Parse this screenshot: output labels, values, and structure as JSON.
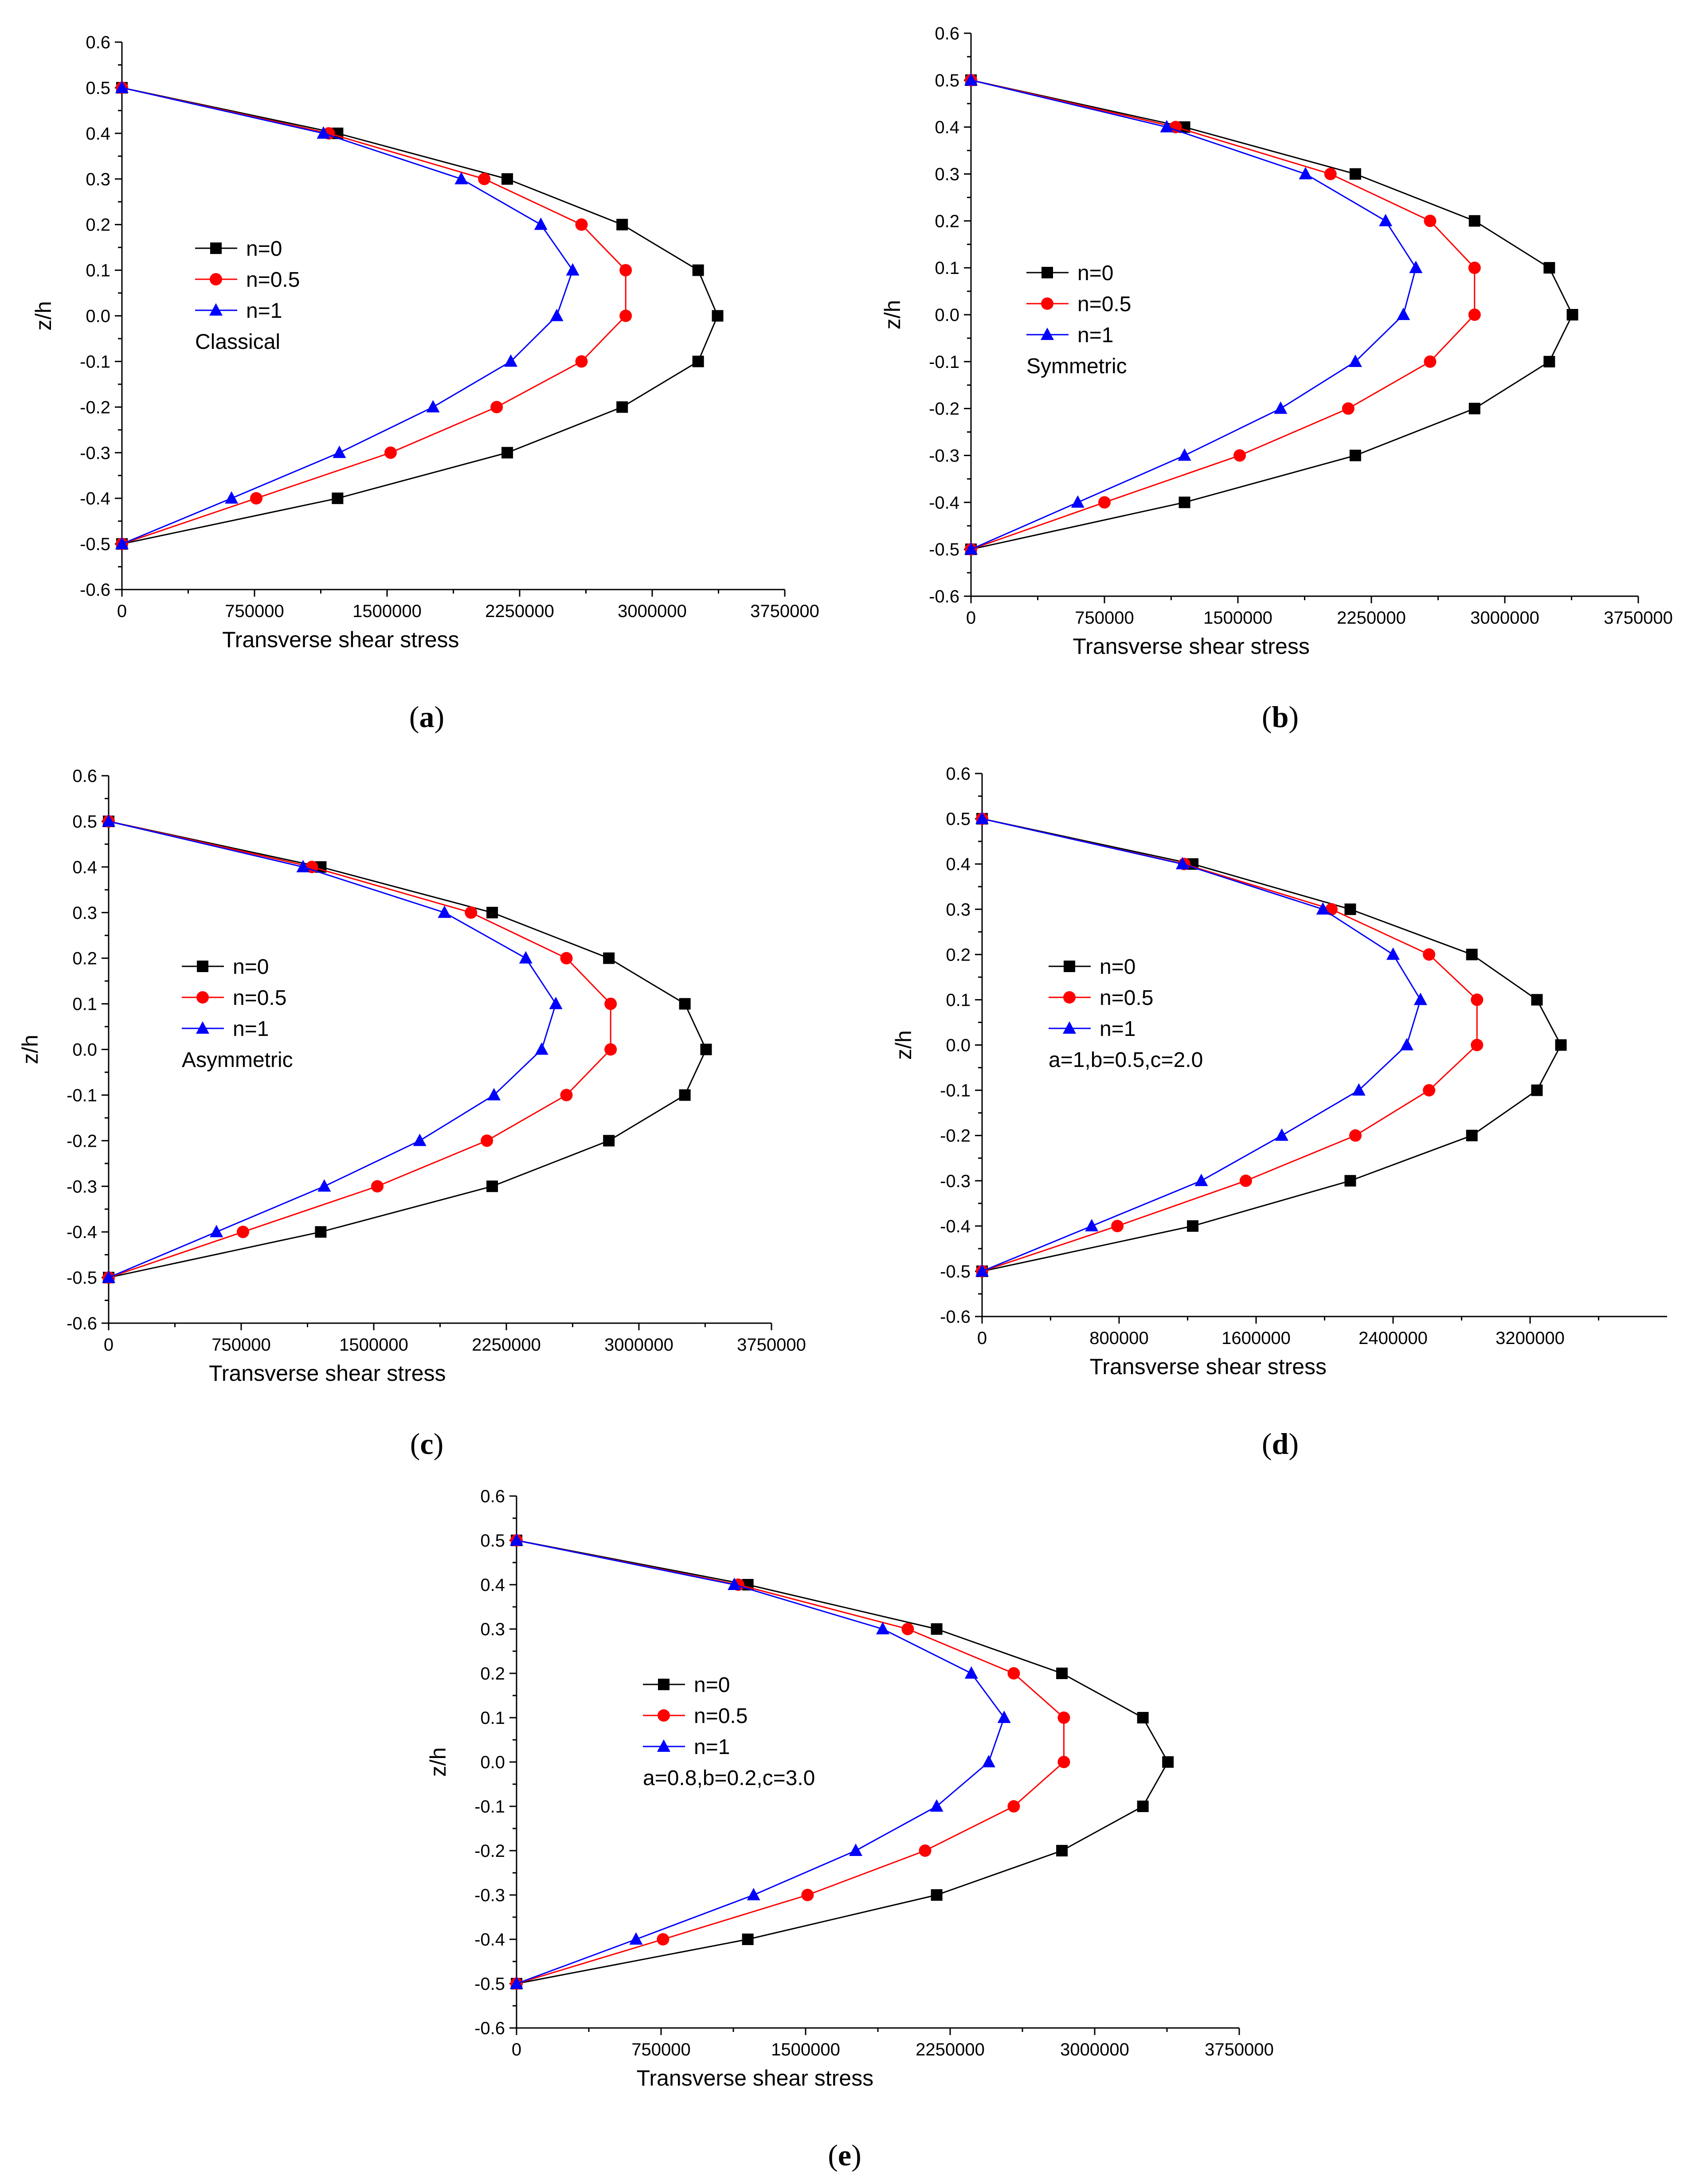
{
  "figure": {
    "title": ""
  },
  "chart_data": [
    {
      "type": "line",
      "panel": "a",
      "caption_open": "(",
      "caption_letter": "a",
      "caption_close": ")",
      "xlabel": "Transverse shear stress",
      "ylabel": "z/h",
      "xlim": [
        0,
        3750000
      ],
      "ylim": [
        -0.6,
        0.6
      ],
      "xticks": [
        0,
        750000,
        1500000,
        2250000,
        3000000,
        3750000
      ],
      "xtick_labels": [
        "0",
        "750000",
        "1500000",
        "2250000",
        "3000000",
        "3750000"
      ],
      "yticks": [
        0.6,
        0.5,
        0.4,
        0.3,
        0.2,
        0.1,
        0.0,
        -0.1,
        -0.2,
        -0.3,
        -0.4,
        -0.5,
        -0.6
      ],
      "ytick_labels": [
        "0.6",
        "0.5",
        "0.4",
        "0.3",
        "0.2",
        "0.1",
        "0.0",
        "-0.1",
        "-0.2",
        "-0.3",
        "-0.4",
        "-0.5",
        "-0.6"
      ],
      "annotation": "Classical",
      "y": [
        0.5,
        0.4,
        0.3,
        0.2,
        0.1,
        0.0,
        -0.1,
        -0.2,
        -0.3,
        -0.4,
        -0.5
      ],
      "series": [
        {
          "name": "n=0",
          "color": "#000000",
          "marker": "square",
          "x": [
            0,
            1220000,
            2180000,
            2830000,
            3260000,
            3370000,
            3260000,
            2830000,
            2180000,
            1220000,
            0
          ]
        },
        {
          "name": "n=0.5",
          "color": "#ff0000",
          "marker": "circle",
          "x": [
            0,
            1170000,
            2050000,
            2600000,
            2850000,
            2850000,
            2600000,
            2120000,
            1520000,
            760000,
            0
          ]
        },
        {
          "name": "n=1",
          "color": "#0000ff",
          "marker": "triangle",
          "x": [
            0,
            1140000,
            1920000,
            2370000,
            2550000,
            2460000,
            2200000,
            1760000,
            1230000,
            620000,
            0
          ]
        }
      ]
    },
    {
      "type": "line",
      "panel": "b",
      "caption_open": "(",
      "caption_letter": "b",
      "caption_close": ")",
      "xlabel": "Transverse shear stress",
      "ylabel": "z/h",
      "xlim": [
        0,
        3750000
      ],
      "ylim": [
        -0.6,
        0.6
      ],
      "xticks": [
        0,
        750000,
        1500000,
        2250000,
        3000000,
        3750000
      ],
      "xtick_labels": [
        "0",
        "750000",
        "1500000",
        "2250000",
        "3000000",
        "3750000"
      ],
      "yticks": [
        0.6,
        0.5,
        0.4,
        0.3,
        0.2,
        0.1,
        0.0,
        -0.1,
        -0.2,
        -0.3,
        -0.4,
        -0.5,
        -0.6
      ],
      "ytick_labels": [
        "0.6",
        "0.5",
        "0.4",
        "0.3",
        "0.2",
        "0.1",
        "0.0",
        "-0.1",
        "-0.2",
        "-0.3",
        "-0.4",
        "-0.5",
        "-0.6"
      ],
      "annotation": "Symmetric",
      "y": [
        0.5,
        0.4,
        0.3,
        0.2,
        0.1,
        0.0,
        -0.1,
        -0.2,
        -0.3,
        -0.4,
        -0.5
      ],
      "series": [
        {
          "name": "n=0",
          "color": "#000000",
          "marker": "square",
          "x": [
            0,
            1200000,
            2160000,
            2830000,
            3250000,
            3380000,
            3250000,
            2830000,
            2160000,
            1200000,
            0
          ]
        },
        {
          "name": "n=0.5",
          "color": "#ff0000",
          "marker": "circle",
          "x": [
            0,
            1150000,
            2020000,
            2580000,
            2830000,
            2830000,
            2580000,
            2120000,
            1510000,
            750000,
            0
          ]
        },
        {
          "name": "n=1",
          "color": "#0000ff",
          "marker": "triangle",
          "x": [
            0,
            1100000,
            1880000,
            2330000,
            2500000,
            2430000,
            2160000,
            1740000,
            1200000,
            600000,
            0
          ]
        }
      ]
    },
    {
      "type": "line",
      "panel": "c",
      "caption_open": "(",
      "caption_letter": "c",
      "caption_close": ")",
      "xlabel": "Transverse shear stress",
      "ylabel": "z/h",
      "xlim": [
        0,
        3750000
      ],
      "ylim": [
        -0.6,
        0.6
      ],
      "xticks": [
        0,
        750000,
        1500000,
        2250000,
        3000000,
        3750000
      ],
      "xtick_labels": [
        "0",
        "750000",
        "1500000",
        "2250000",
        "3000000",
        "3750000"
      ],
      "yticks": [
        0.6,
        0.5,
        0.4,
        0.3,
        0.2,
        0.1,
        0.0,
        -0.1,
        -0.2,
        -0.3,
        -0.4,
        -0.5,
        -0.6
      ],
      "ytick_labels": [
        "0.6",
        "0.5",
        "0.4",
        "0.3",
        "0.2",
        "0.1",
        "0.0",
        "-0.1",
        "-0.2",
        "-0.3",
        "-0.4",
        "-0.5",
        "-0.6"
      ],
      "annotation": "Asymmetric",
      "y": [
        0.5,
        0.4,
        0.3,
        0.2,
        0.1,
        0.0,
        -0.1,
        -0.2,
        -0.3,
        -0.4,
        -0.5
      ],
      "series": [
        {
          "name": "n=0",
          "color": "#000000",
          "marker": "square",
          "x": [
            0,
            1200000,
            2170000,
            2830000,
            3260000,
            3380000,
            3260000,
            2830000,
            2170000,
            1200000,
            0
          ]
        },
        {
          "name": "n=0.5",
          "color": "#ff0000",
          "marker": "circle",
          "x": [
            0,
            1150000,
            2050000,
            2590000,
            2840000,
            2840000,
            2590000,
            2140000,
            1520000,
            760000,
            0
          ]
        },
        {
          "name": "n=1",
          "color": "#0000ff",
          "marker": "triangle",
          "x": [
            0,
            1100000,
            1900000,
            2360000,
            2530000,
            2450000,
            2180000,
            1760000,
            1220000,
            610000,
            0
          ]
        }
      ]
    },
    {
      "type": "line",
      "panel": "d",
      "caption_open": "(",
      "caption_letter": "d",
      "caption_close": ")",
      "xlabel": "Transverse shear stress",
      "ylabel": "z/h",
      "xlim": [
        0,
        4000000
      ],
      "ylim": [
        -0.6,
        0.6
      ],
      "xticks": [
        0,
        800000,
        1600000,
        2400000,
        3200000
      ],
      "xtick_labels": [
        "0",
        "800000",
        "1600000",
        "2400000",
        "3200000"
      ],
      "yticks": [
        0.6,
        0.5,
        0.4,
        0.3,
        0.2,
        0.1,
        0.0,
        -0.1,
        -0.2,
        -0.3,
        -0.4,
        -0.5,
        -0.6
      ],
      "ytick_labels": [
        "0.6",
        "0.5",
        "0.4",
        "0.3",
        "0.2",
        "0.1",
        "0.0",
        "-0.1",
        "-0.2",
        "-0.3",
        "-0.4",
        "-0.5",
        "-0.6"
      ],
      "annotation": "a=1,b=0.5,c=2.0",
      "y": [
        0.5,
        0.4,
        0.3,
        0.2,
        0.1,
        0.0,
        -0.1,
        -0.2,
        -0.3,
        -0.4,
        -0.5
      ],
      "series": [
        {
          "name": "n=0",
          "color": "#000000",
          "marker": "square",
          "x": [
            0,
            1230000,
            2150000,
            2860000,
            3240000,
            3380000,
            3240000,
            2860000,
            2150000,
            1230000,
            0
          ]
        },
        {
          "name": "n=0.5",
          "color": "#ff0000",
          "marker": "circle",
          "x": [
            0,
            1180000,
            2040000,
            2610000,
            2890000,
            2890000,
            2610000,
            2180000,
            1540000,
            790000,
            0
          ]
        },
        {
          "name": "n=1",
          "color": "#0000ff",
          "marker": "triangle",
          "x": [
            0,
            1170000,
            1990000,
            2400000,
            2560000,
            2480000,
            2200000,
            1750000,
            1280000,
            640000,
            0
          ]
        }
      ]
    },
    {
      "type": "line",
      "panel": "e",
      "caption_open": "(",
      "caption_letter": "e",
      "caption_close": ")",
      "xlabel": "Transverse shear stress",
      "ylabel": "z/h",
      "xlim": [
        0,
        3750000
      ],
      "ylim": [
        -0.6,
        0.6
      ],
      "xticks": [
        0,
        750000,
        1500000,
        2250000,
        3000000,
        3750000
      ],
      "xtick_labels": [
        "0",
        "750000",
        "1500000",
        "2250000",
        "3000000",
        "3750000"
      ],
      "yticks": [
        0.6,
        0.5,
        0.4,
        0.3,
        0.2,
        0.1,
        0.0,
        -0.1,
        -0.2,
        -0.3,
        -0.4,
        -0.5,
        -0.6
      ],
      "ytick_labels": [
        "0.6",
        "0.5",
        "0.4",
        "0.3",
        "0.2",
        "0.1",
        "0.0",
        "-0.1",
        "-0.2",
        "-0.3",
        "-0.4",
        "-0.5",
        "-0.6"
      ],
      "annotation": "a=0.8,b=0.2,c=3.0",
      "y": [
        0.5,
        0.4,
        0.3,
        0.2,
        0.1,
        0.0,
        -0.1,
        -0.2,
        -0.3,
        -0.4,
        -0.5
      ],
      "series": [
        {
          "name": "n=0",
          "color": "#000000",
          "marker": "square",
          "x": [
            0,
            1200000,
            2180000,
            2830000,
            3250000,
            3380000,
            3250000,
            2830000,
            2180000,
            1200000,
            0
          ]
        },
        {
          "name": "n=0.5",
          "color": "#ff0000",
          "marker": "circle",
          "x": [
            0,
            1150000,
            2030000,
            2580000,
            2840000,
            2840000,
            2580000,
            2120000,
            1510000,
            760000,
            0
          ]
        },
        {
          "name": "n=1",
          "color": "#0000ff",
          "marker": "triangle",
          "x": [
            0,
            1130000,
            1900000,
            2360000,
            2530000,
            2450000,
            2180000,
            1760000,
            1230000,
            620000,
            0
          ]
        }
      ]
    }
  ]
}
